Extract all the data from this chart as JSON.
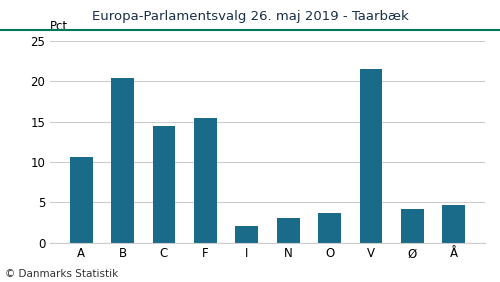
{
  "title": "Europa-Parlamentsvalg 26. maj 2019 - Taarbæk",
  "categories": [
    "A",
    "B",
    "C",
    "F",
    "I",
    "N",
    "O",
    "V",
    "Ø",
    "Å"
  ],
  "values": [
    10.6,
    20.4,
    14.5,
    15.4,
    2.1,
    3.1,
    3.7,
    21.5,
    4.1,
    4.7
  ],
  "bar_color": "#1a6a8a",
  "ylabel": "Pct.",
  "ylim": [
    0,
    25
  ],
  "yticks": [
    0,
    5,
    10,
    15,
    20,
    25
  ],
  "background_color": "#ffffff",
  "footer": "© Danmarks Statistik",
  "title_color": "#1a2e4a",
  "title_line_color": "#007755",
  "grid_color": "#cccccc",
  "title_fontsize": 9.5,
  "tick_fontsize": 8.5,
  "footer_fontsize": 7.5
}
